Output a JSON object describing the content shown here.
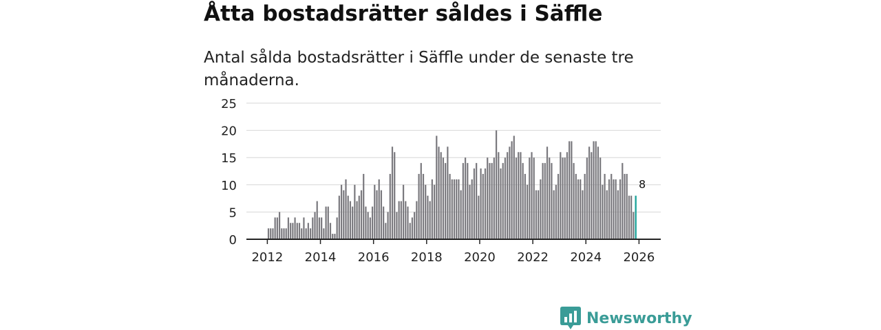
{
  "title": "Åtta bostadsrätter såldes i Säffle",
  "subtitle": "Antal sålda bostadsrätter i Säffle under de senaste tre månaderna.",
  "brand": {
    "name": "Newsworthy",
    "color": "#3a9c97",
    "icon": "newsworthy-logo-icon"
  },
  "chart_data": {
    "type": "bar",
    "title": "Åtta bostadsrätter såldes i Säffle",
    "xlabel": "",
    "ylabel": "",
    "ylim": [
      0,
      25
    ],
    "yticks": [
      "0",
      "5",
      "10",
      "15",
      "20",
      "25"
    ],
    "xticks": [
      "2012",
      "2014",
      "2016",
      "2018",
      "2020",
      "2022",
      "2024",
      "2026"
    ],
    "xrange": [
      "2012-01",
      "2026-02"
    ],
    "bar_color": "#7a797e",
    "highlight_color": "#21a49b",
    "series": [
      {
        "name": "Antal sålda bostadsrätter",
        "start": "2012-01",
        "values": [
          2,
          2,
          2,
          4,
          4,
          5,
          2,
          2,
          2,
          4,
          3,
          3,
          4,
          3,
          3,
          2,
          4,
          2,
          3,
          2,
          4,
          5,
          7,
          4,
          4,
          2,
          6,
          6,
          3,
          1,
          1,
          4,
          8,
          10,
          9,
          11,
          8,
          7,
          6,
          10,
          7,
          8,
          9,
          12,
          6,
          5,
          4,
          6,
          10,
          9,
          11,
          9,
          6,
          3,
          5,
          12,
          17,
          16,
          5,
          7,
          7,
          10,
          7,
          6,
          3,
          4,
          5,
          7,
          12,
          14,
          12,
          10,
          8,
          7,
          11,
          10,
          19,
          17,
          16,
          15,
          14,
          17,
          12,
          11,
          11,
          11,
          11,
          9,
          14,
          15,
          14,
          10,
          11,
          13,
          14,
          8,
          13,
          12,
          13,
          15,
          14,
          14,
          15,
          20,
          16,
          13,
          14,
          15,
          16,
          17,
          18,
          19,
          15,
          16,
          16,
          14,
          12,
          10,
          15,
          16,
          15,
          9,
          9,
          11,
          14,
          14,
          17,
          15,
          14,
          9,
          10,
          12,
          16,
          15,
          15,
          16,
          18,
          18,
          14,
          12,
          11,
          11,
          9,
          12,
          15,
          17,
          16,
          18,
          18,
          17,
          15,
          10,
          12,
          9,
          11,
          12,
          11,
          11,
          9,
          11,
          14,
          12,
          12,
          8,
          8,
          5,
          8
        ]
      }
    ],
    "annotation": {
      "label": "8",
      "value": 8,
      "date": "2026-02"
    }
  }
}
